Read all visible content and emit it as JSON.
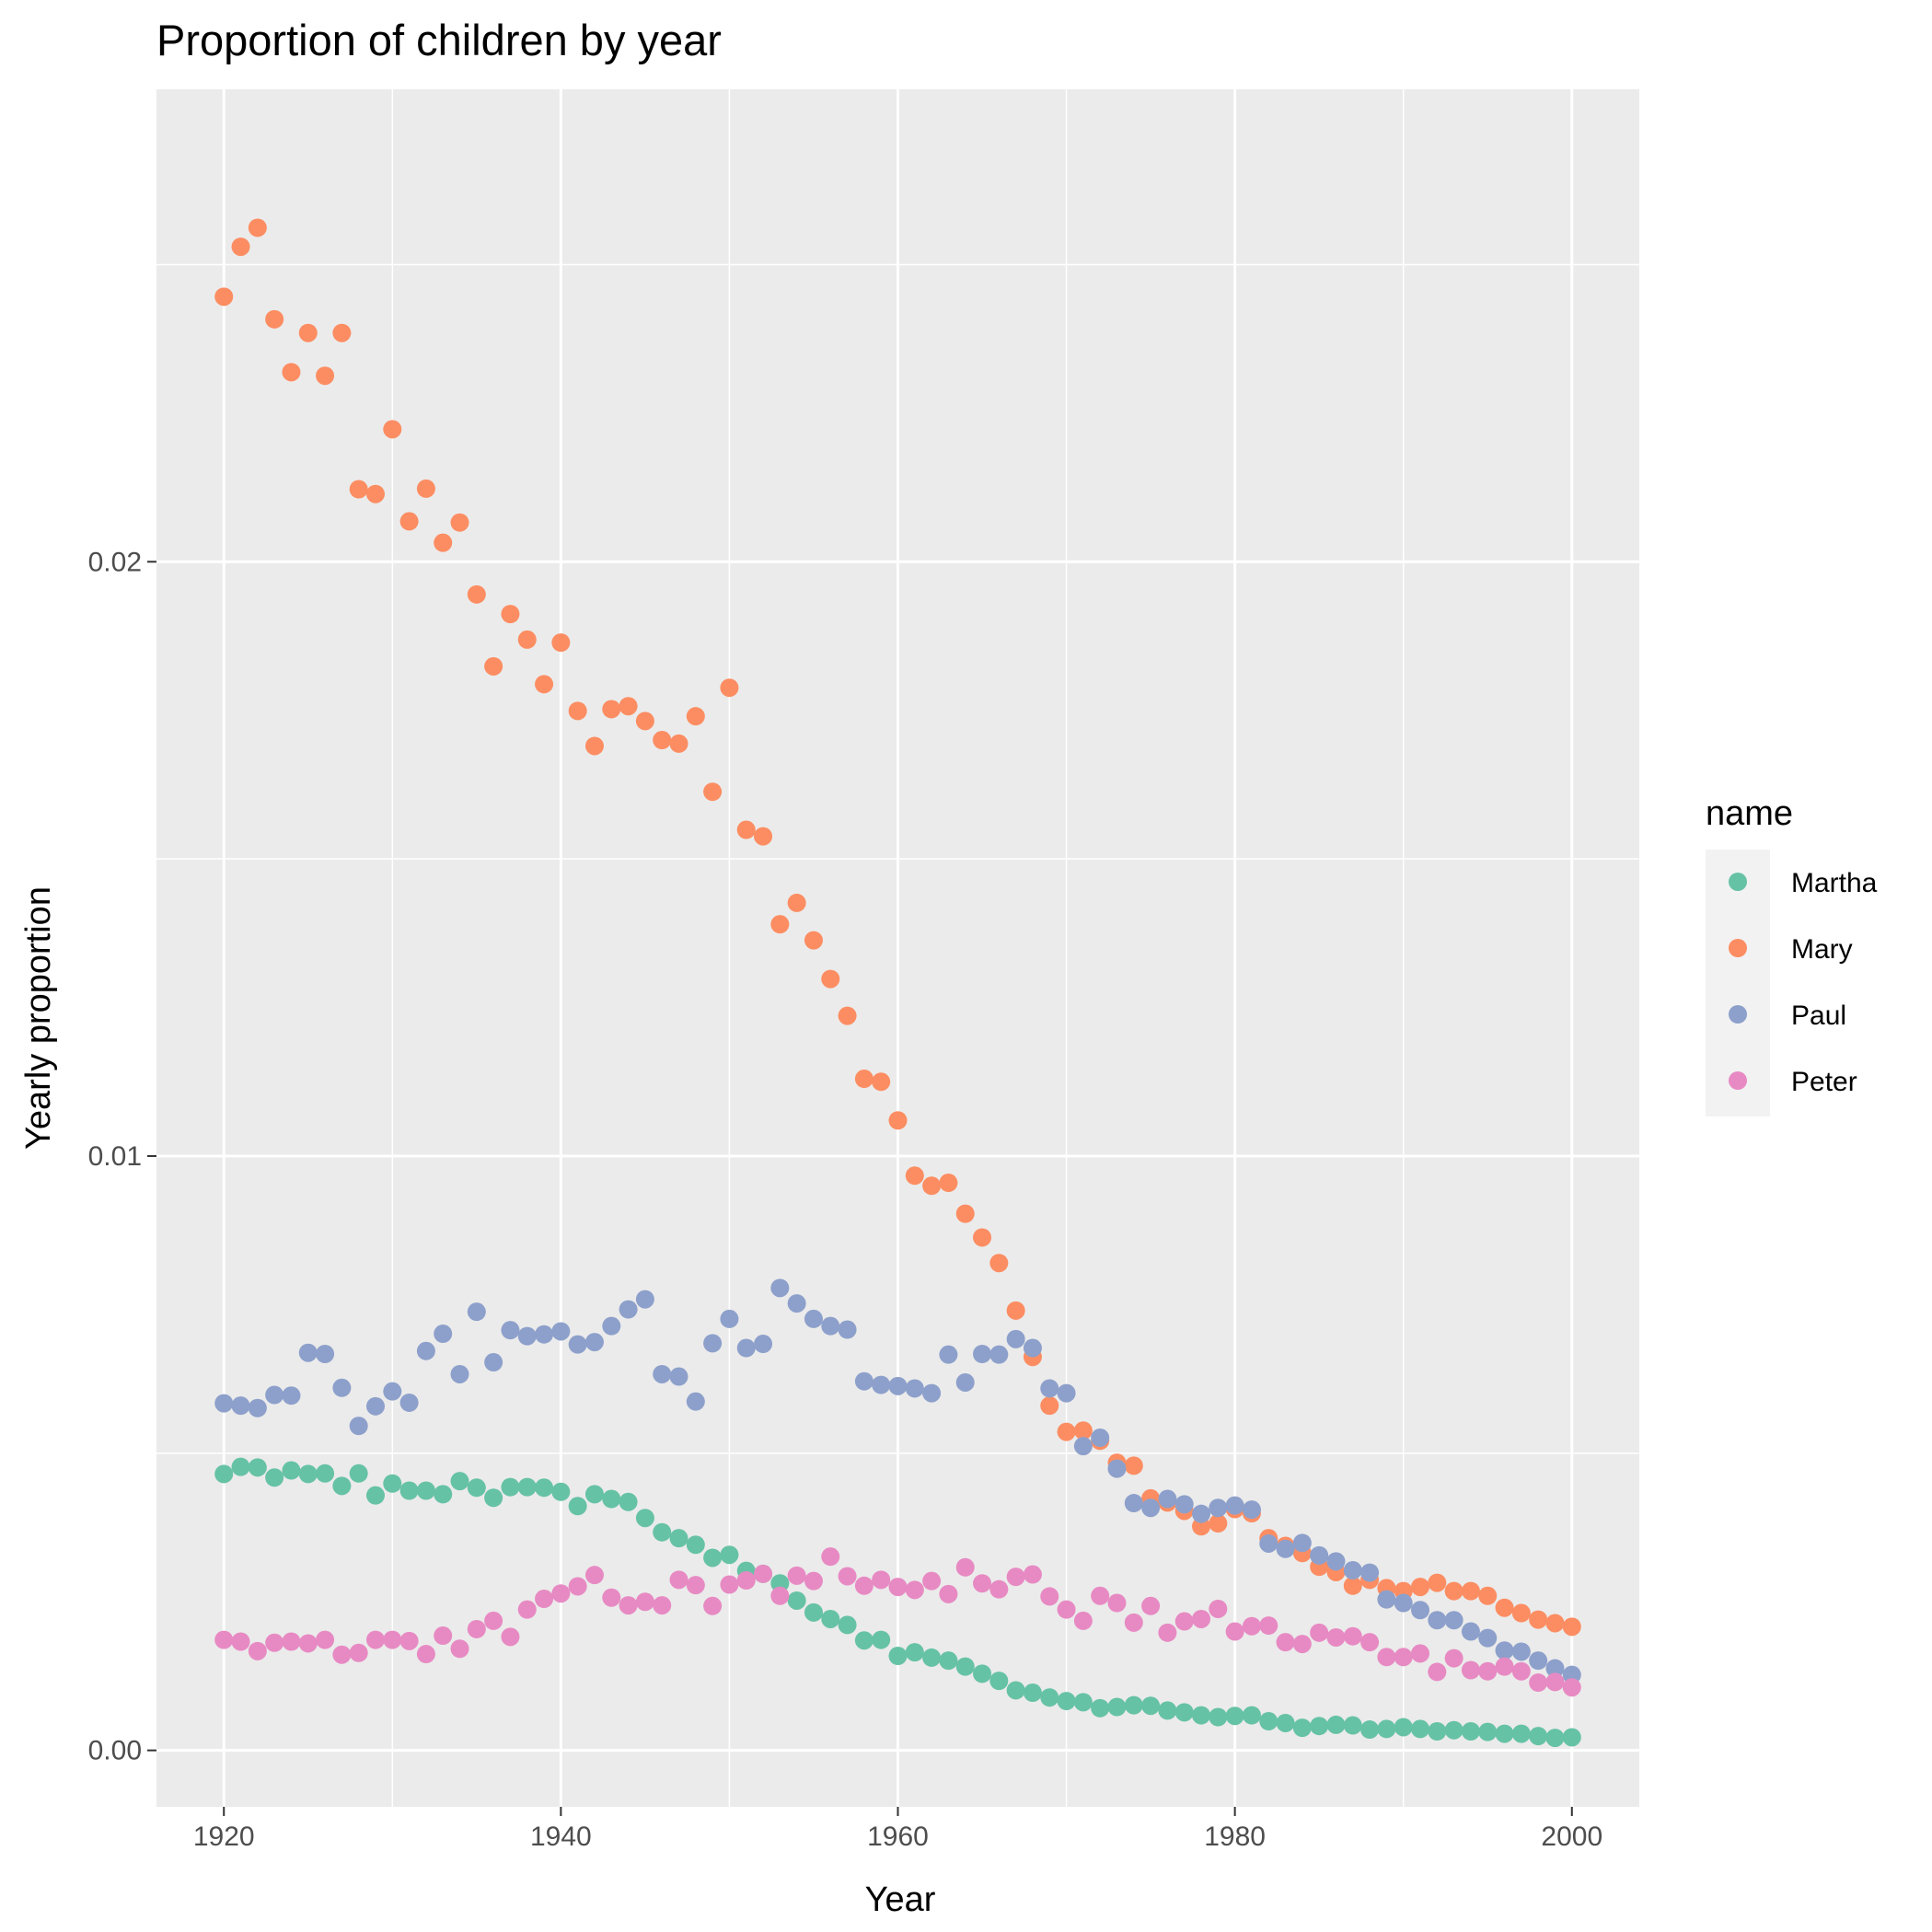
{
  "chart_data": {
    "type": "scatter",
    "title": "Proportion of children by year",
    "xlabel": "Year",
    "ylabel": "Yearly proportion",
    "xlim": [
      1916,
      2004
    ],
    "ylim": [
      -0.00095,
      0.02795
    ],
    "x_ticks": [
      1920,
      1940,
      1960,
      1980,
      2000
    ],
    "x_tick_labels": [
      "1920",
      "1940",
      "1960",
      "1980",
      "2000"
    ],
    "y_ticks": [
      0.0,
      0.01,
      0.02
    ],
    "y_tick_labels": [
      "0.00",
      "0.01",
      "0.02"
    ],
    "grid": true,
    "legend": {
      "title": "name",
      "position": "right"
    },
    "x": [
      1920,
      1921,
      1922,
      1923,
      1924,
      1925,
      1926,
      1927,
      1928,
      1929,
      1930,
      1931,
      1932,
      1933,
      1934,
      1935,
      1936,
      1937,
      1938,
      1939,
      1940,
      1941,
      1942,
      1943,
      1944,
      1945,
      1946,
      1947,
      1948,
      1949,
      1950,
      1951,
      1952,
      1953,
      1954,
      1955,
      1956,
      1957,
      1958,
      1959,
      1960,
      1961,
      1962,
      1963,
      1964,
      1965,
      1966,
      1967,
      1968,
      1969,
      1970,
      1971,
      1972,
      1973,
      1974,
      1975,
      1976,
      1977,
      1978,
      1979,
      1980,
      1981,
      1982,
      1983,
      1984,
      1985,
      1986,
      1987,
      1988,
      1989,
      1990,
      1991,
      1992,
      1993,
      1994,
      1995,
      1996,
      1997,
      1998,
      1999,
      2000
    ],
    "series": [
      {
        "name": "Martha",
        "color": "#66c2a5",
        "values": [
          0.00465,
          0.00477,
          0.00476,
          0.00459,
          0.00471,
          0.00465,
          0.00466,
          0.00445,
          0.00466,
          0.00429,
          0.00449,
          0.00437,
          0.00437,
          0.00431,
          0.00453,
          0.00442,
          0.00425,
          0.00443,
          0.00443,
          0.00442,
          0.00435,
          0.00411,
          0.00431,
          0.00423,
          0.00418,
          0.00391,
          0.00367,
          0.00357,
          0.00346,
          0.00324,
          0.00329,
          0.00302,
          0.00297,
          0.00281,
          0.00252,
          0.00232,
          0.00221,
          0.00211,
          0.00185,
          0.00186,
          0.00159,
          0.00165,
          0.00156,
          0.00151,
          0.00141,
          0.00129,
          0.00117,
          0.00101,
          0.00097,
          0.00089,
          0.00083,
          0.00081,
          0.00071,
          0.00073,
          0.00076,
          0.00075,
          0.00067,
          0.00064,
          0.00059,
          0.00056,
          0.00058,
          0.00059,
          0.00049,
          0.00046,
          0.00038,
          0.00041,
          0.00043,
          0.00042,
          0.00035,
          0.00036,
          0.00039,
          0.00036,
          0.00032,
          0.00034,
          0.00032,
          0.00031,
          0.00028,
          0.00028,
          0.00024,
          0.00021,
          0.00022
        ]
      },
      {
        "name": "Mary",
        "color": "#fc8d62",
        "values": [
          0.02446,
          0.0253,
          0.02562,
          0.02408,
          0.02319,
          0.02385,
          0.02313,
          0.02385,
          0.02122,
          0.02114,
          0.02223,
          0.02068,
          0.02123,
          0.02032,
          0.02066,
          0.01945,
          0.01824,
          0.01912,
          0.01869,
          0.01794,
          0.01864,
          0.01749,
          0.0169,
          0.01752,
          0.01757,
          0.01732,
          0.017,
          0.01694,
          0.0174,
          0.01613,
          0.01788,
          0.01549,
          0.01538,
          0.0139,
          0.01426,
          0.01363,
          0.01298,
          0.01236,
          0.0113,
          0.01125,
          0.0106,
          0.00967,
          0.0095,
          0.00955,
          0.00903,
          0.00863,
          0.0082,
          0.0074,
          0.00662,
          0.0058,
          0.00536,
          0.00538,
          0.00521,
          0.00484,
          0.00479,
          0.00424,
          0.00417,
          0.00403,
          0.00377,
          0.00382,
          0.00406,
          0.00399,
          0.00357,
          0.00344,
          0.00332,
          0.00309,
          0.003,
          0.00277,
          0.00287,
          0.00273,
          0.00268,
          0.00275,
          0.00282,
          0.00268,
          0.00268,
          0.0026,
          0.0024,
          0.00231,
          0.0022,
          0.00214,
          0.00208
        ]
      },
      {
        "name": "Paul",
        "color": "#8da0cb",
        "values": [
          0.00584,
          0.0058,
          0.00576,
          0.00598,
          0.00597,
          0.00669,
          0.00667,
          0.0061,
          0.00546,
          0.00579,
          0.00604,
          0.00585,
          0.00672,
          0.00701,
          0.00633,
          0.00738,
          0.00653,
          0.00707,
          0.00697,
          0.007,
          0.00705,
          0.00683,
          0.00687,
          0.00714,
          0.00742,
          0.00759,
          0.00633,
          0.00629,
          0.00587,
          0.00685,
          0.00726,
          0.00677,
          0.00684,
          0.00778,
          0.00752,
          0.00726,
          0.00714,
          0.00708,
          0.00621,
          0.00615,
          0.00613,
          0.00609,
          0.00601,
          0.00666,
          0.00619,
          0.00667,
          0.00666,
          0.00692,
          0.00677,
          0.00609,
          0.00601,
          0.00512,
          0.00526,
          0.00474,
          0.00416,
          0.00408,
          0.00423,
          0.00414,
          0.00398,
          0.00408,
          0.00412,
          0.00405,
          0.00348,
          0.00339,
          0.00349,
          0.00328,
          0.00318,
          0.00303,
          0.00299,
          0.00254,
          0.00248,
          0.00236,
          0.00219,
          0.00219,
          0.002,
          0.00189,
          0.00168,
          0.00166,
          0.00151,
          0.00138,
          0.00127
        ]
      },
      {
        "name": "Peter",
        "color": "#e78ac3",
        "values": [
          0.00186,
          0.00183,
          0.00167,
          0.00181,
          0.00183,
          0.0018,
          0.00186,
          0.00161,
          0.00164,
          0.00186,
          0.00186,
          0.00184,
          0.00162,
          0.00193,
          0.00171,
          0.00204,
          0.00218,
          0.00191,
          0.00237,
          0.00255,
          0.00264,
          0.00276,
          0.00295,
          0.00257,
          0.00244,
          0.0025,
          0.00244,
          0.00287,
          0.00278,
          0.00243,
          0.00279,
          0.00286,
          0.00297,
          0.0026,
          0.00294,
          0.00285,
          0.00326,
          0.00293,
          0.00277,
          0.00287,
          0.00275,
          0.0027,
          0.00285,
          0.00263,
          0.00308,
          0.00281,
          0.00271,
          0.00292,
          0.00296,
          0.00259,
          0.00237,
          0.00218,
          0.0026,
          0.00248,
          0.00215,
          0.00243,
          0.00198,
          0.00217,
          0.00221,
          0.00238,
          0.002,
          0.00209,
          0.0021,
          0.00182,
          0.00179,
          0.00198,
          0.0019,
          0.00192,
          0.00182,
          0.00157,
          0.00157,
          0.00163,
          0.00132,
          0.00155,
          0.00135,
          0.00133,
          0.00141,
          0.00133,
          0.00114,
          0.00115,
          0.00106
        ]
      }
    ]
  }
}
